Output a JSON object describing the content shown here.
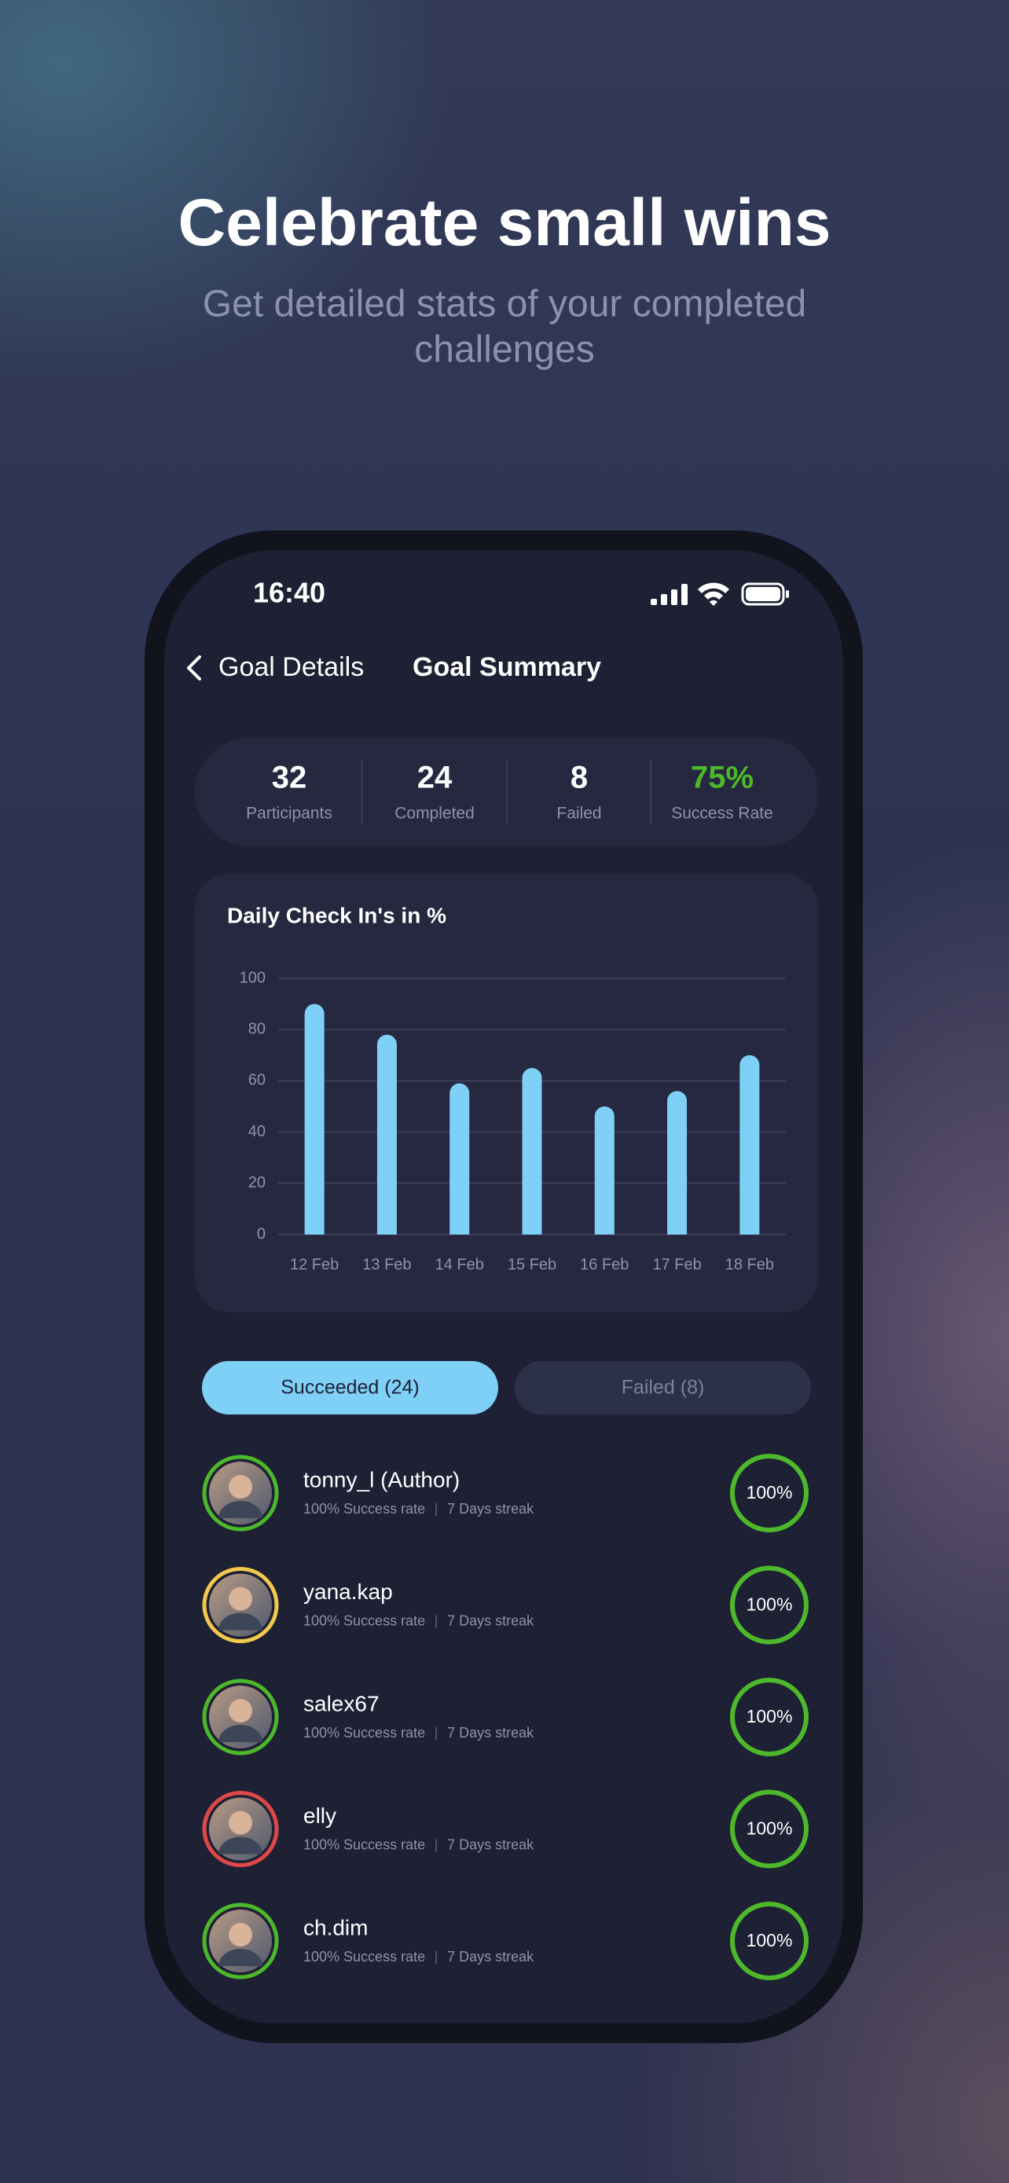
{
  "header": {
    "title": "Celebrate small wins",
    "subtitle_lines": [
      "Get detailed stats of your completed",
      "challenges"
    ]
  },
  "status_bar": {
    "time": "16:40"
  },
  "nav": {
    "back": "Goal Details",
    "title": "Goal Summary"
  },
  "stats": [
    {
      "value": "32",
      "label": "Participants",
      "color": "#ffffff"
    },
    {
      "value": "24",
      "label": "Completed",
      "color": "#ffffff"
    },
    {
      "value": "8",
      "label": "Failed",
      "color": "#ffffff"
    },
    {
      "value": "75%",
      "label": "Success Rate",
      "color": "#4cb82a"
    }
  ],
  "chart_data": {
    "type": "bar",
    "title": "Daily Check In's in %",
    "categories": [
      "12 Feb",
      "13 Feb",
      "14 Feb",
      "15 Feb",
      "16 Feb",
      "17 Feb",
      "18 Feb"
    ],
    "values": [
      90,
      78,
      59,
      65,
      50,
      56,
      70
    ],
    "color": "#7fd0f7",
    "ylim": [
      0,
      100
    ],
    "yticks": [
      0,
      20,
      40,
      60,
      80,
      100
    ],
    "grid": true
  },
  "tabs": [
    {
      "label": "Succeeded (24)",
      "active": true
    },
    {
      "label": "Failed (8)",
      "active": false
    }
  ],
  "users": [
    {
      "name": "tonny_l (Author)",
      "rate": "100% Success rate",
      "streak": "7 Days streak",
      "score": "100%",
      "ring": "#4cb82a"
    },
    {
      "name": "yana.kap",
      "rate": "100% Success rate",
      "streak": "7 Days streak",
      "score": "100%",
      "ring": "#f2c94c"
    },
    {
      "name": "salex67",
      "rate": "100% Success rate",
      "streak": "7 Days streak",
      "score": "100%",
      "ring": "#4cb82a"
    },
    {
      "name": "elly",
      "rate": "100% Success rate",
      "streak": "7 Days streak",
      "score": "100%",
      "ring": "#e04848"
    },
    {
      "name": "ch.dim",
      "rate": "100% Success rate",
      "streak": "7 Days streak",
      "score": "100%",
      "ring": "#4cb82a"
    }
  ]
}
